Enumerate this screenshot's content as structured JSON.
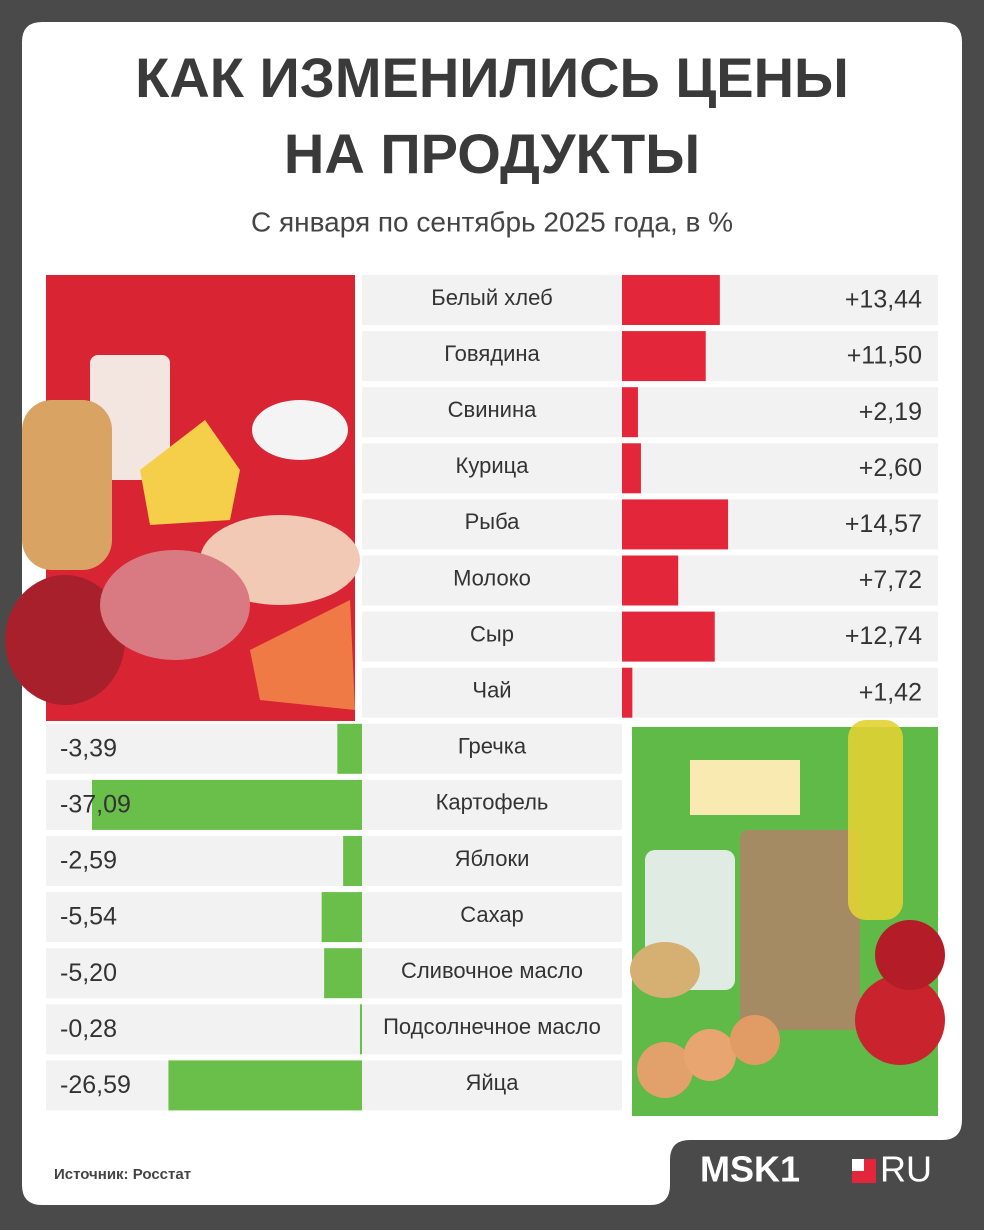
{
  "chart_data": {
    "type": "bar",
    "title": [
      "КАК ИЗМЕНИЛИСЬ ЦЕНЫ",
      "НА ПРОДУКТЫ"
    ],
    "subtitle": "С января по сентябрь 2025 года, в %",
    "categories": [
      "Белый хлеб",
      "Говядина",
      "Свинина",
      "Курица",
      "Рыба",
      "Молоко",
      "Сыр",
      "Чай",
      "Гречка",
      "Картофель",
      "Яблоки",
      "Сахар",
      "Сливочное масло",
      "Подсолнечное масло",
      "Яйца"
    ],
    "values": [
      13.44,
      11.5,
      2.19,
      2.6,
      14.57,
      7.72,
      12.74,
      1.42,
      -3.39,
      -37.09,
      -2.59,
      -5.54,
      -5.2,
      -0.28,
      -26.59
    ],
    "value_labels": [
      "+13,44",
      "+11,50",
      "+2,19",
      "+2,60",
      "+14,57",
      "+7,72",
      "+12,74",
      "+1,42",
      "-3,39",
      "-37,09",
      "-2,59",
      "-5,54",
      "-5,20",
      "-0,28",
      "-26,59"
    ],
    "color_positive": "#e3263a",
    "color_negative": "#6abf4b",
    "source": "Источник: Росстат",
    "logo": [
      "MSK1",
      "RU"
    ]
  }
}
